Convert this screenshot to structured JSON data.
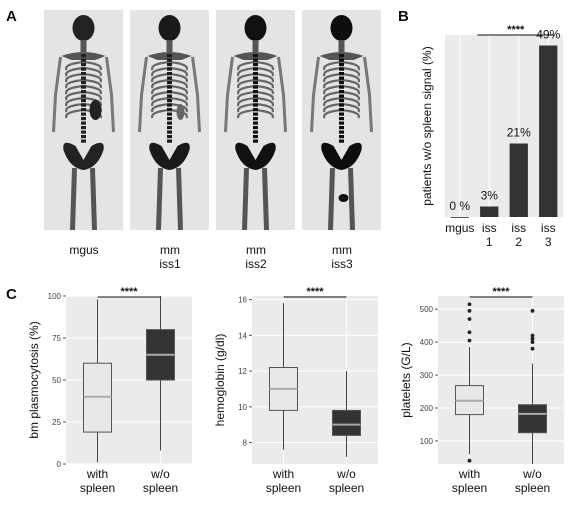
{
  "panels": {
    "a": "A",
    "b": "B",
    "c": "C"
  },
  "scans": [
    {
      "label_line1": "mgus",
      "label_line2": ""
    },
    {
      "label_line1": "mm",
      "label_line2": "iss1"
    },
    {
      "label_line1": "mm",
      "label_line2": "iss2"
    },
    {
      "label_line1": "mm",
      "label_line2": "iss3"
    }
  ],
  "chart_data": [
    {
      "type": "bar",
      "panel": "B",
      "ylabel": "patients w/o spleen signal (%)",
      "categories": [
        [
          "mgus",
          ""
        ],
        [
          "iss",
          "1"
        ],
        [
          "iss",
          "2"
        ],
        [
          "iss",
          "3"
        ]
      ],
      "values": [
        0,
        3,
        21,
        49
      ],
      "value_labels": [
        "0 %",
        "3%",
        "21%",
        "49%"
      ],
      "ylim": [
        0,
        52
      ],
      "significance": "****",
      "bar_color": "#333333",
      "background": "#ebebeb"
    },
    {
      "type": "box",
      "panel": "C",
      "ylabel": "bm plasmocytosis (%)",
      "categories": [
        [
          "with",
          "spleen"
        ],
        [
          "w/o",
          "spleen"
        ]
      ],
      "ylim": [
        0,
        100
      ],
      "ticks": [
        0,
        25,
        50,
        75,
        100
      ],
      "boxes": [
        {
          "q1": 19,
          "median": 40,
          "q3": 60,
          "low": 1,
          "high": 98,
          "outliers": [],
          "fill": "#e8e8e8"
        },
        {
          "q1": 50,
          "median": 65,
          "q3": 80,
          "low": 8,
          "high": 100,
          "outliers": [],
          "fill": "#333333"
        }
      ],
      "significance": "****",
      "background": "#ebebeb"
    },
    {
      "type": "box",
      "panel": "C",
      "ylabel": "hemoglobin (g/dl)",
      "categories": [
        [
          "with",
          "spleen"
        ],
        [
          "w/o",
          "spleen"
        ]
      ],
      "ylim": [
        6.8,
        16.2
      ],
      "ticks": [
        8,
        10,
        12,
        14,
        16
      ],
      "boxes": [
        {
          "q1": 9.8,
          "median": 11.0,
          "q3": 12.2,
          "low": 7.6,
          "high": 15.8,
          "outliers": [],
          "fill": "#e8e8e8"
        },
        {
          "q1": 8.4,
          "median": 9.0,
          "q3": 9.8,
          "low": 7.2,
          "high": 12.0,
          "outliers": [],
          "fill": "#333333"
        }
      ],
      "significance": "****",
      "background": "#ebebeb"
    },
    {
      "type": "box",
      "panel": "C",
      "ylabel": "platelets (G/L)",
      "categories": [
        [
          "with",
          "spleen"
        ],
        [
          "w/o",
          "spleen"
        ]
      ],
      "ylim": [
        30,
        540
      ],
      "ticks": [
        100,
        200,
        300,
        400,
        500
      ],
      "boxes": [
        {
          "q1": 180,
          "median": 222,
          "q3": 268,
          "low": 60,
          "high": 385,
          "outliers": [
            40,
            405,
            430,
            470,
            495,
            515
          ],
          "fill": "#e8e8e8"
        },
        {
          "q1": 125,
          "median": 182,
          "q3": 210,
          "low": 30,
          "high": 335,
          "outliers": [
            380,
            400,
            410,
            420,
            495
          ],
          "fill": "#333333"
        }
      ],
      "significance": "****",
      "background": "#ebebeb"
    }
  ]
}
